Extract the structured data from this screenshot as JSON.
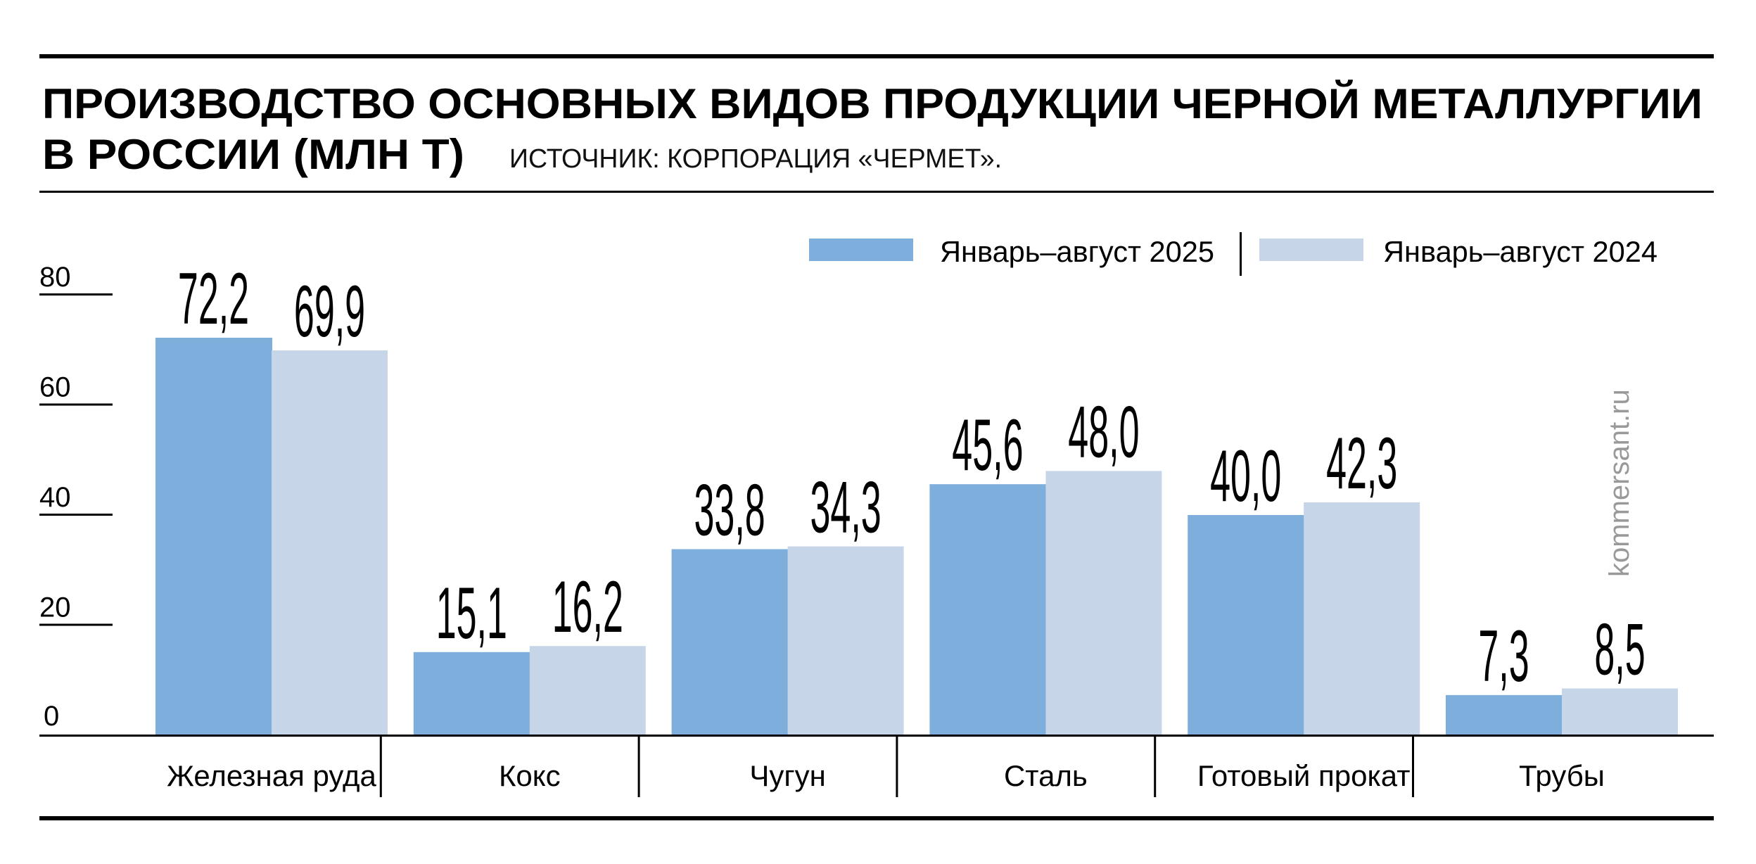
{
  "chart_data": {
    "type": "bar",
    "title": "ПРОИЗВОДСТВО ОСНОВНЫХ ВИДОВ ПРОДУКЦИИ ЧЕРНОЙ МЕТАЛЛУРГИИ",
    "title_line2": "В РОССИИ (МЛН Т)",
    "source": "ИСТОЧНИК: КОРПОРАЦИЯ «ЧЕРМЕТ».",
    "categories": [
      "Железная руда",
      "Кокс",
      "Чугун",
      "Сталь",
      "Готовый прокат",
      "Трубы"
    ],
    "series": [
      {
        "name": "Январь–август 2025",
        "color": "#7eaedb",
        "values": [
          72.2,
          15.1,
          33.8,
          45.6,
          40.0,
          7.3
        ],
        "labels": [
          "72,2",
          "15,1",
          "33,8",
          "45,6",
          "40,0",
          "7,3"
        ]
      },
      {
        "name": "Январь–август 2024",
        "color": "#c6d5e8",
        "values": [
          69.9,
          16.2,
          34.3,
          48.0,
          42.3,
          8.5
        ],
        "labels": [
          "69,9",
          "16,2",
          "34,3",
          "48,0",
          "42,3",
          "8,5"
        ]
      }
    ],
    "yticks": [
      "0",
      "20",
      "40",
      "60",
      "80"
    ],
    "ylim": [
      0,
      80
    ],
    "legend_position": "top-right",
    "grid": false,
    "watermark": "kommersant.ru"
  }
}
